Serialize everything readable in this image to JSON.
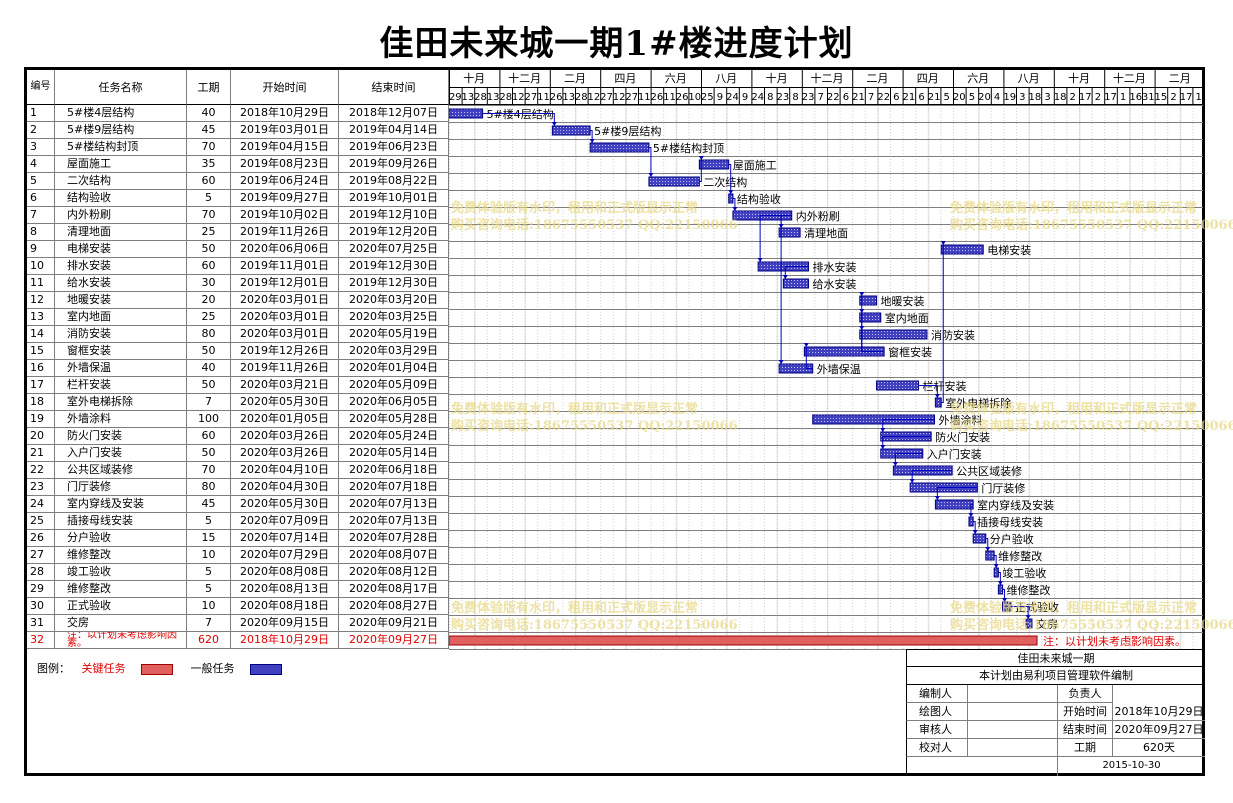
{
  "title": "佳田未来城一期1#楼进度计划",
  "headers": {
    "id": "编号",
    "name": "任务名称",
    "duration": "工期",
    "start": "开始时间",
    "end": "结束时间"
  },
  "timescale": {
    "months": [
      "十月",
      "十二月",
      "二月",
      "四月",
      "六月",
      "八月",
      "十月",
      "十二月",
      "二月",
      "四月",
      "六月",
      "八月",
      "十月",
      "十二月",
      "二月"
    ],
    "days": [
      "29",
      "13",
      "28",
      "13",
      "28",
      "12",
      "27",
      "11",
      "26",
      "13",
      "28",
      "12",
      "27",
      "12",
      "27",
      "11",
      "26",
      "11",
      "26",
      "10",
      "25",
      "9",
      "24",
      "9",
      "24",
      "8",
      "23",
      "8",
      "23",
      "7",
      "22",
      "6",
      "21",
      "7",
      "22",
      "6",
      "21",
      "6",
      "21",
      "5",
      "20",
      "5",
      "20",
      "4",
      "19",
      "3",
      "18",
      "3",
      "18",
      "2",
      "17",
      "2",
      "17",
      "1",
      "16",
      "31",
      "15",
      "2",
      "17",
      "1"
    ]
  },
  "tasks": [
    {
      "id": "1",
      "name": "5#楼4层结构",
      "duration": "40",
      "start": "2018年10月29日",
      "end": "2018年12月07日",
      "label": "5#楼4层结构"
    },
    {
      "id": "2",
      "name": "5#楼9层结构",
      "duration": "45",
      "start": "2019年03月01日",
      "end": "2019年04月14日",
      "label": "5#楼9层结构"
    },
    {
      "id": "3",
      "name": "5#楼结构封顶",
      "duration": "70",
      "start": "2019年04月15日",
      "end": "2019年06月23日",
      "label": "5#楼结构封顶"
    },
    {
      "id": "4",
      "name": "屋面施工",
      "duration": "35",
      "start": "2019年08月23日",
      "end": "2019年09月26日",
      "label": "屋面施工"
    },
    {
      "id": "5",
      "name": "二次结构",
      "duration": "60",
      "start": "2019年06月24日",
      "end": "2019年08月22日",
      "label": "二次结构"
    },
    {
      "id": "6",
      "name": "结构验收",
      "duration": "5",
      "start": "2019年09月27日",
      "end": "2019年10月01日",
      "label": "结构验收"
    },
    {
      "id": "7",
      "name": "内外粉刷",
      "duration": "70",
      "start": "2019年10月02日",
      "end": "2019年12月10日",
      "label": "内外粉刷"
    },
    {
      "id": "8",
      "name": "清理地面",
      "duration": "25",
      "start": "2019年11月26日",
      "end": "2019年12月20日",
      "label": "清理地面"
    },
    {
      "id": "9",
      "name": "电梯安装",
      "duration": "50",
      "start": "2020年06月06日",
      "end": "2020年07月25日",
      "label": "电梯安装"
    },
    {
      "id": "10",
      "name": "排水安装",
      "duration": "60",
      "start": "2019年11月01日",
      "end": "2019年12月30日",
      "label": "排水安装"
    },
    {
      "id": "11",
      "name": "给水安装",
      "duration": "30",
      "start": "2019年12月01日",
      "end": "2019年12月30日",
      "label": "给水安装"
    },
    {
      "id": "12",
      "name": "地暖安装",
      "duration": "20",
      "start": "2020年03月01日",
      "end": "2020年03月20日",
      "label": "地暖安装"
    },
    {
      "id": "13",
      "name": "室内地面",
      "duration": "25",
      "start": "2020年03月01日",
      "end": "2020年03月25日",
      "label": "室内地面"
    },
    {
      "id": "14",
      "name": "消防安装",
      "duration": "80",
      "start": "2020年03月01日",
      "end": "2020年05月19日",
      "label": "消防安装"
    },
    {
      "id": "15",
      "name": "窗框安装",
      "duration": "50",
      "start": "2019年12月26日",
      "end": "2020年03月29日",
      "label": "窗框安装"
    },
    {
      "id": "16",
      "name": "外墙保温",
      "duration": "40",
      "start": "2019年11月26日",
      "end": "2020年01月04日",
      "label": "外墙保温"
    },
    {
      "id": "17",
      "name": "栏杆安装",
      "duration": "50",
      "start": "2020年03月21日",
      "end": "2020年05月09日",
      "label": "栏杆安装"
    },
    {
      "id": "18",
      "name": "室外电梯拆除",
      "duration": "7",
      "start": "2020年05月30日",
      "end": "2020年06月05日",
      "label": "室外电梯拆除"
    },
    {
      "id": "19",
      "name": "外墙涂料",
      "duration": "100",
      "start": "2020年01月05日",
      "end": "2020年05月28日",
      "label": "外墙涂料"
    },
    {
      "id": "20",
      "name": "防火门安装",
      "duration": "60",
      "start": "2020年03月26日",
      "end": "2020年05月24日",
      "label": "防火门安装"
    },
    {
      "id": "21",
      "name": "入户门安装",
      "duration": "50",
      "start": "2020年03月26日",
      "end": "2020年05月14日",
      "label": "入户门安装"
    },
    {
      "id": "22",
      "name": "公共区域装修",
      "duration": "70",
      "start": "2020年04月10日",
      "end": "2020年06月18日",
      "label": "公共区域装修"
    },
    {
      "id": "23",
      "name": "门厅装修",
      "duration": "80",
      "start": "2020年04月30日",
      "end": "2020年07月18日",
      "label": "门厅装修"
    },
    {
      "id": "24",
      "name": "室内穿线及安装",
      "duration": "45",
      "start": "2020年05月30日",
      "end": "2020年07月13日",
      "label": "室内穿线及安装"
    },
    {
      "id": "25",
      "name": "插接母线安装",
      "duration": "5",
      "start": "2020年07月09日",
      "end": "2020年07月13日",
      "label": "插接母线安装"
    },
    {
      "id": "26",
      "name": "分户验收",
      "duration": "15",
      "start": "2020年07月14日",
      "end": "2020年07月28日",
      "label": "分户验收"
    },
    {
      "id": "27",
      "name": "维修整改",
      "duration": "10",
      "start": "2020年07月29日",
      "end": "2020年08月07日",
      "label": "维修整改"
    },
    {
      "id": "28",
      "name": "竣工验收",
      "duration": "5",
      "start": "2020年08月08日",
      "end": "2020年08月12日",
      "label": "竣工验收"
    },
    {
      "id": "29",
      "name": "维修整改",
      "duration": "5",
      "start": "2020年08月13日",
      "end": "2020年08月17日",
      "label": "维修整改"
    },
    {
      "id": "30",
      "name": "正式验收",
      "duration": "10",
      "start": "2020年08月18日",
      "end": "2020年08月27日",
      "label": "正式验收"
    },
    {
      "id": "31",
      "name": "交房",
      "duration": "7",
      "start": "2020年09月15日",
      "end": "2020年09月21日",
      "label": "交房"
    },
    {
      "id": "32",
      "name": "注：以计划未考虑影响因素。",
      "duration": "620",
      "start": "2018年10月29日",
      "end": "2020年09月27日",
      "label": "注：以计划未考虑影响因素。"
    }
  ],
  "legend": {
    "label": "图例：",
    "critical": "关键任务",
    "normal": "一般任务"
  },
  "colors": {
    "critical": "#e06060",
    "normal": "#4040c0",
    "link": "#0000c0"
  },
  "infobox": {
    "project": "佳田未来城一期",
    "software": "本计划由易利项目管理软件编制",
    "editor": "编制人",
    "manager": "负责人",
    "drawer": "绘图人",
    "start_label": "开始时间",
    "start_value": "2018年10月29日",
    "reviewer": "审核人",
    "end_label": "结束时间",
    "end_value": "2020年09月27日",
    "checker": "校对人",
    "duration_label": "工期",
    "duration_value": "620天",
    "date": "2015-10-30"
  },
  "watermark": {
    "line1": "免费体验版有水印，租用和正式版显示正常",
    "line2": "购买咨询电话:18675550537 QQ:22150066"
  }
}
